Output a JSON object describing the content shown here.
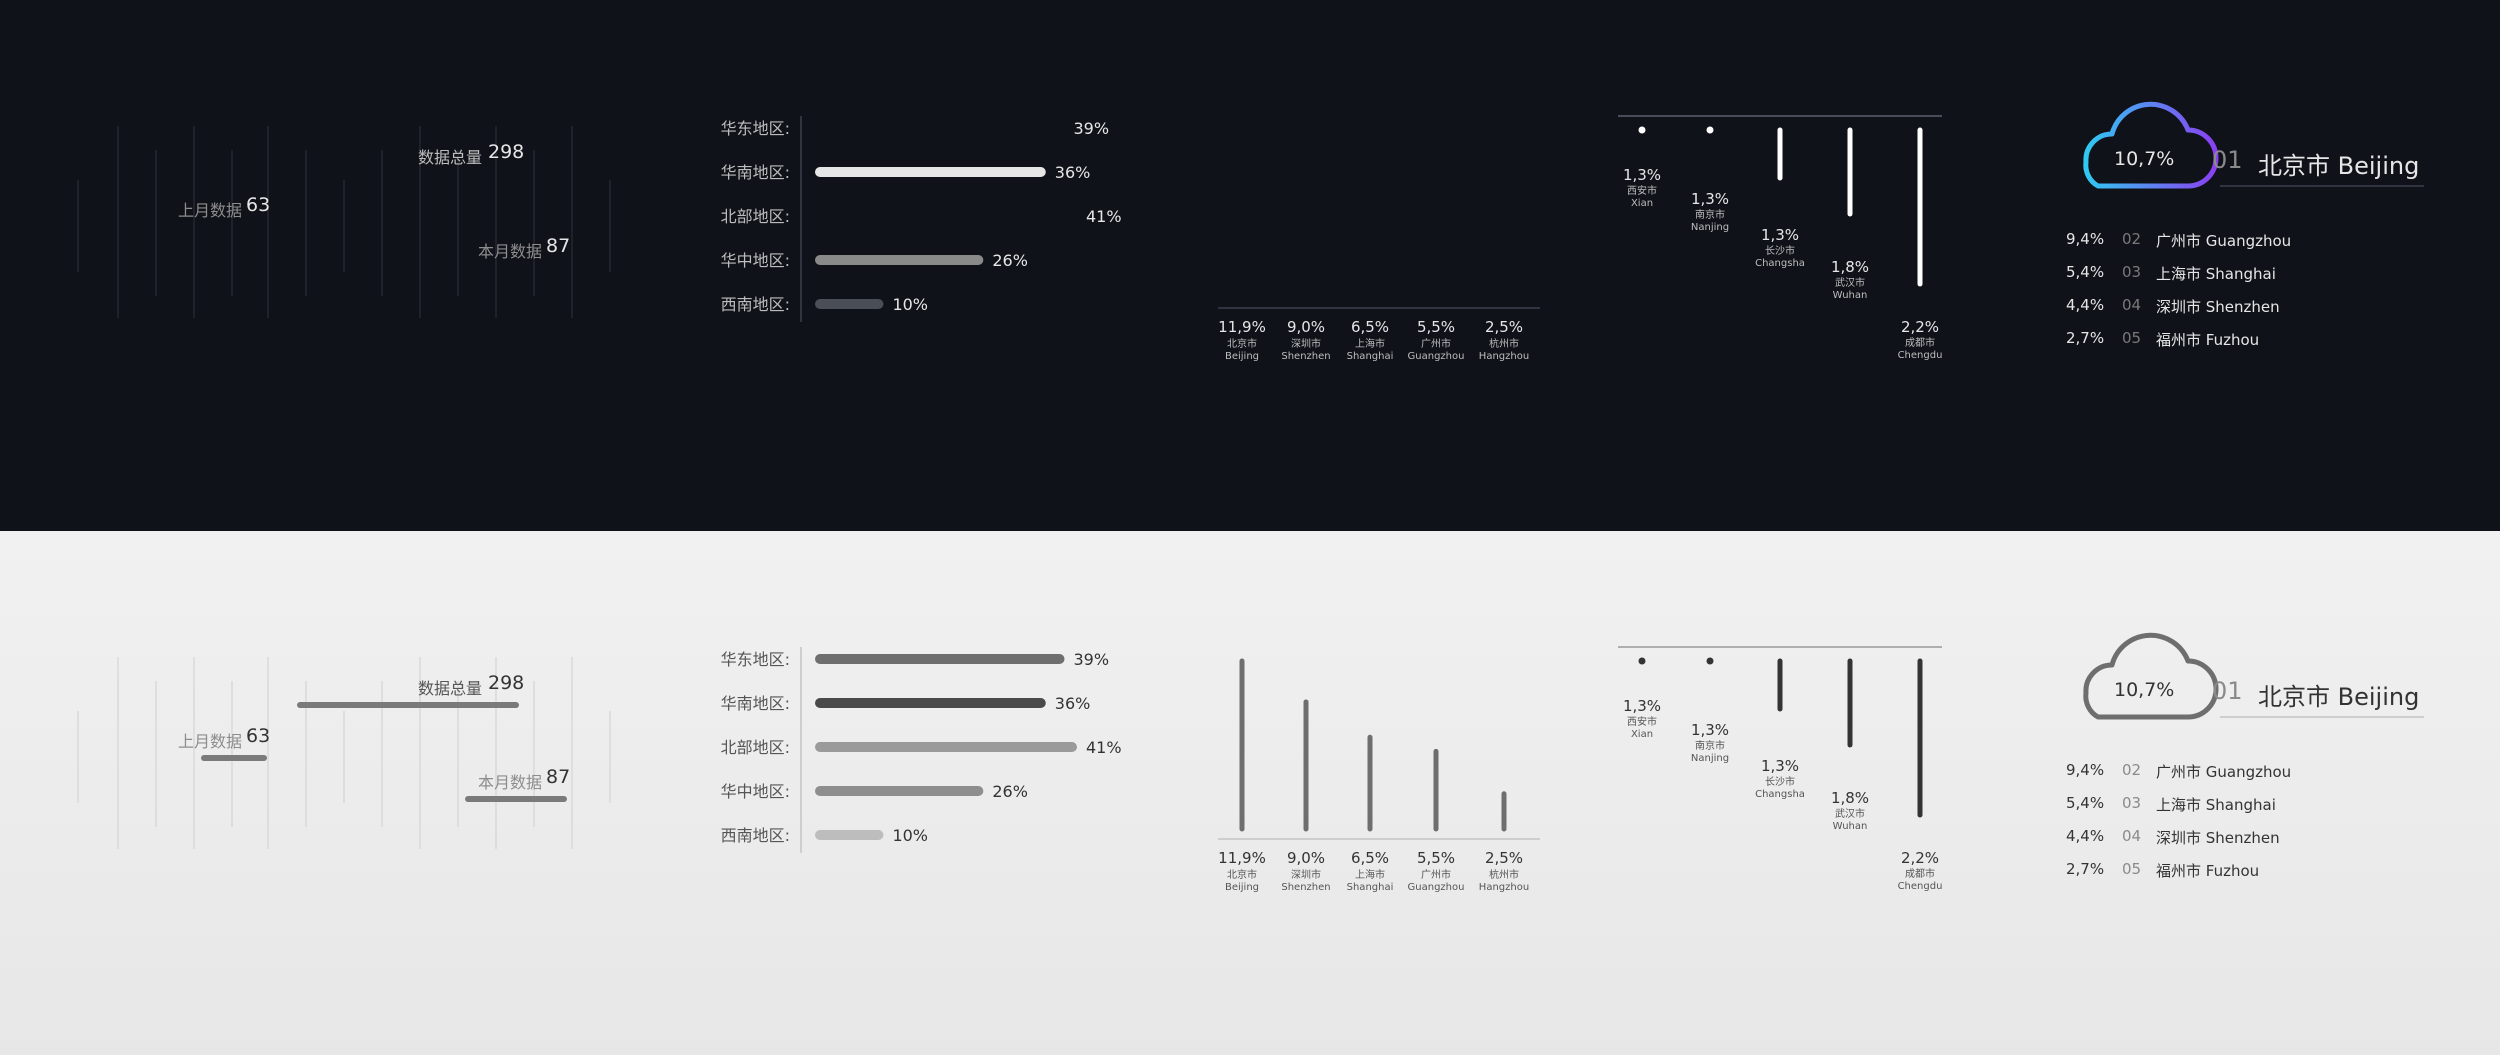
{
  "colors": {
    "dark_bg": "#0f1219",
    "light_bg": "#ececec",
    "grad_purple": "#8a3ff2",
    "grad_cyan": "#30c9f3",
    "dark_text": "#e6e6e6",
    "light_text": "#333333",
    "gray_bar_dark": "#8a8a8a",
    "gray_bar_light": "#6e6e6e"
  },
  "themes": [
    {
      "name": "dark",
      "comparison": {
        "total": {
          "label": "数据总量",
          "value": "298"
        },
        "last_month": {
          "label": "上月数据",
          "value": "63"
        },
        "this_month": {
          "label": "本月数据",
          "value": "87"
        }
      },
      "regions": {
        "chart_data": {
          "type": "bar",
          "orientation": "horizontal",
          "categories": [
            "华东地区:",
            "华南地区:",
            "北部地区:",
            "华中地区:",
            "西南地区:"
          ],
          "values": [
            39,
            36,
            41,
            26,
            10
          ],
          "labels": [
            "39%",
            "36%",
            "41%",
            "26%",
            "10%"
          ]
        }
      },
      "city_bars": {
        "chart_data": {
          "type": "bar",
          "categories": [
            "北京市",
            "深圳市",
            "上海市",
            "广州市",
            "杭州市"
          ],
          "categories_en": [
            "Beijing",
            "Shenzhen",
            "Shanghai",
            "Guangzhou",
            "Hangzhou"
          ],
          "values": [
            11.9,
            9.0,
            6.5,
            5.5,
            2.5
          ],
          "labels": [
            "11,9%",
            "9,0%",
            "6,5%",
            "5,5%",
            "2,5%"
          ]
        }
      },
      "hanging_bars": {
        "chart_data": {
          "type": "bar",
          "categories": [
            "西安市",
            "南京市",
            "长沙市",
            "武汉市",
            "成都市"
          ],
          "categories_en": [
            "Xian",
            "Nanjing",
            "Changsha",
            "Wuhan",
            "Chengdu"
          ],
          "values": [
            1.3,
            1.3,
            1.3,
            1.8,
            2.2
          ],
          "labels": [
            "1,3%",
            "1,3%",
            "1,3%",
            "1,8%",
            "2,2%"
          ]
        }
      },
      "ranking": {
        "top": {
          "value": "10,7%",
          "rank": "01",
          "city": "北京市 Beijing"
        },
        "items": [
          {
            "value": "9,4%",
            "rank": "02",
            "city": "广州市 Guangzhou"
          },
          {
            "value": "5,4%",
            "rank": "03",
            "city": "上海市 Shanghai"
          },
          {
            "value": "4,4%",
            "rank": "04",
            "city": "深圳市 Shenzhen"
          },
          {
            "value": "2,7%",
            "rank": "05",
            "city": "福州市 Fuzhou"
          }
        ]
      }
    },
    {
      "name": "light",
      "comparison": {
        "total": {
          "label": "数据总量",
          "value": "298"
        },
        "last_month": {
          "label": "上月数据",
          "value": "63"
        },
        "this_month": {
          "label": "本月数据",
          "value": "87"
        }
      },
      "regions": {
        "chart_data": {
          "type": "bar",
          "orientation": "horizontal",
          "categories": [
            "华东地区:",
            "华南地区:",
            "北部地区:",
            "华中地区:",
            "西南地区:"
          ],
          "values": [
            39,
            36,
            41,
            26,
            10
          ],
          "labels": [
            "39%",
            "36%",
            "41%",
            "26%",
            "10%"
          ]
        }
      },
      "city_bars": {
        "chart_data": {
          "type": "bar",
          "categories": [
            "北京市",
            "深圳市",
            "上海市",
            "广州市",
            "杭州市"
          ],
          "categories_en": [
            "Beijing",
            "Shenzhen",
            "Shanghai",
            "Guangzhou",
            "Hangzhou"
          ],
          "values": [
            11.9,
            9.0,
            6.5,
            5.5,
            2.5
          ],
          "labels": [
            "11,9%",
            "9,0%",
            "6,5%",
            "5,5%",
            "2,5%"
          ]
        }
      },
      "hanging_bars": {
        "chart_data": {
          "type": "bar",
          "categories": [
            "西安市",
            "南京市",
            "长沙市",
            "武汉市",
            "成都市"
          ],
          "categories_en": [
            "Xian",
            "Nanjing",
            "Changsha",
            "Wuhan",
            "Chengdu"
          ],
          "values": [
            1.3,
            1.3,
            1.3,
            1.8,
            2.2
          ],
          "labels": [
            "1,3%",
            "1,3%",
            "1,3%",
            "1,8%",
            "2,2%"
          ]
        }
      },
      "ranking": {
        "top": {
          "value": "10,7%",
          "rank": "01",
          "city": "北京市 Beijing"
        },
        "items": [
          {
            "value": "9,4%",
            "rank": "02",
            "city": "广州市 Guangzhou"
          },
          {
            "value": "5,4%",
            "rank": "03",
            "city": "上海市 Shanghai"
          },
          {
            "value": "4,4%",
            "rank": "04",
            "city": "深圳市 Shenzhen"
          },
          {
            "value": "2,7%",
            "rank": "05",
            "city": "福州市 Fuzhou"
          }
        ]
      }
    }
  ]
}
